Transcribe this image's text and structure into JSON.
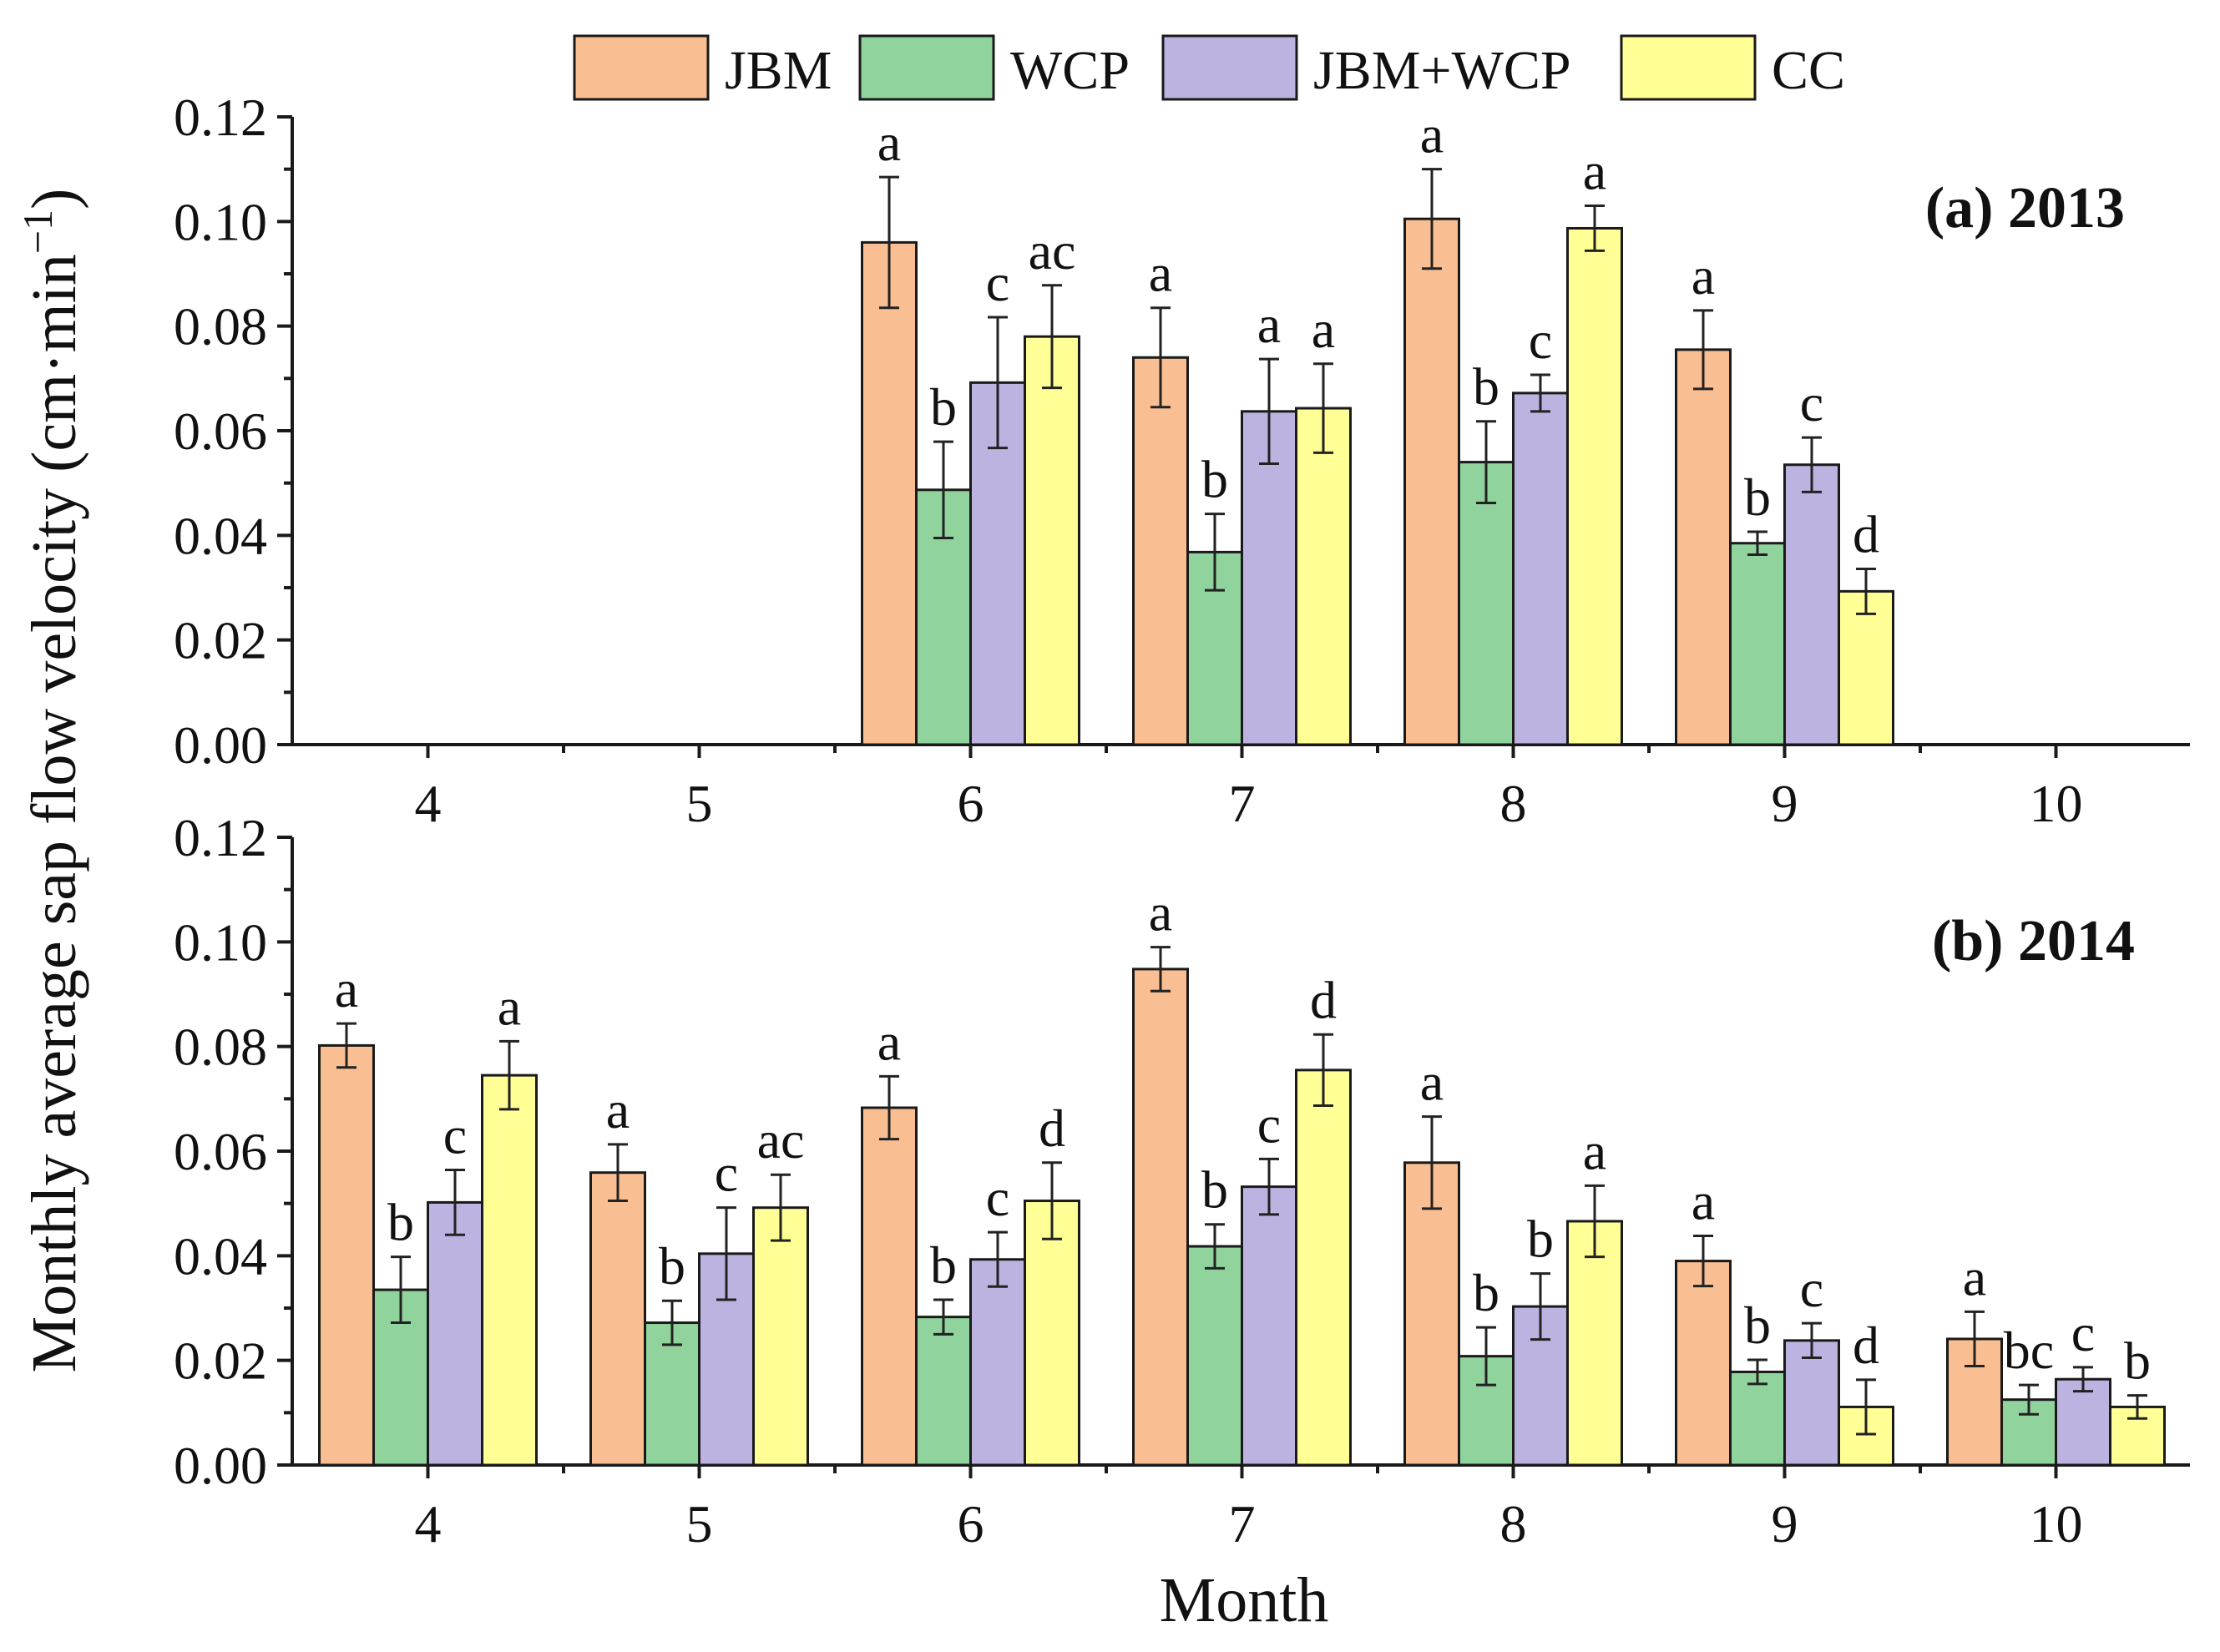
{
  "legend": [
    "JBM",
    "WCP",
    "JBM+WCP",
    "CC"
  ],
  "colors": {
    "JBM": "#f9bf92",
    "WCP": "#90d39c",
    "JBM+WCP": "#bcb3e0",
    "CC": "#ffff96"
  },
  "axes": {
    "ylabel": "Monthly average sap flow velocity (cm·min",
    "ylabel_sup": "−1",
    "ylabel_close": ")",
    "xlabel": "Month"
  },
  "chart_data": [
    {
      "type": "bar",
      "title": "(a) 2013",
      "categories": [
        "4",
        "5",
        "6",
        "7",
        "8",
        "9",
        "10"
      ],
      "ylim": [
        0,
        0.12
      ],
      "yticks": [
        "0.00",
        "0.02",
        "0.04",
        "0.06",
        "0.08",
        "0.10",
        "0.12"
      ],
      "series": [
        {
          "name": "JBM",
          "values": [
            null,
            null,
            0.096,
            0.074,
            0.1005,
            0.0755,
            null
          ],
          "errors": [
            null,
            null,
            0.0125,
            0.0095,
            0.0095,
            0.0075,
            null
          ],
          "letters": [
            "",
            "",
            "a",
            "a",
            "a",
            "a",
            ""
          ]
        },
        {
          "name": "WCP",
          "values": [
            null,
            null,
            0.0487,
            0.0368,
            0.054,
            0.0385,
            null
          ],
          "errors": [
            null,
            null,
            0.0092,
            0.0073,
            0.0078,
            0.0022,
            null
          ],
          "letters": [
            "",
            "",
            "b",
            "b",
            "b",
            "b",
            ""
          ]
        },
        {
          "name": "JBM+WCP",
          "values": [
            null,
            null,
            0.0692,
            0.0637,
            0.0672,
            0.0535,
            null
          ],
          "errors": [
            null,
            null,
            0.0125,
            0.01,
            0.0035,
            0.0052,
            null
          ],
          "letters": [
            "",
            "",
            "c",
            "a",
            "c",
            "c",
            ""
          ]
        },
        {
          "name": "CC",
          "values": [
            null,
            null,
            0.078,
            0.0643,
            0.0987,
            0.0293,
            null
          ],
          "errors": [
            null,
            null,
            0.0098,
            0.0085,
            0.0043,
            0.0043,
            null
          ],
          "letters": [
            "",
            "",
            "ac",
            "a",
            "a",
            "d",
            ""
          ]
        }
      ]
    },
    {
      "type": "bar",
      "title": "(b) 2014",
      "categories": [
        "4",
        "5",
        "6",
        "7",
        "8",
        "9",
        "10"
      ],
      "ylim": [
        0,
        0.12
      ],
      "yticks": [
        "0.00",
        "0.02",
        "0.04",
        "0.06",
        "0.08",
        "0.10",
        "0.12"
      ],
      "series": [
        {
          "name": "JBM",
          "values": [
            0.0802,
            0.0559,
            0.0683,
            0.0948,
            0.0578,
            0.039,
            0.0241
          ],
          "errors": [
            0.0042,
            0.0054,
            0.006,
            0.0042,
            0.0088,
            0.0048,
            0.0052
          ],
          "letters": [
            "a",
            "a",
            "a",
            "a",
            "a",
            "a",
            "a"
          ]
        },
        {
          "name": "WCP",
          "values": [
            0.0335,
            0.0272,
            0.0283,
            0.0418,
            0.0208,
            0.0178,
            0.0125
          ],
          "errors": [
            0.0063,
            0.0042,
            0.0033,
            0.0042,
            0.0055,
            0.0023,
            0.0028
          ],
          "letters": [
            "b",
            "b",
            "b",
            "b",
            "b",
            "b",
            "bc"
          ]
        },
        {
          "name": "JBM+WCP",
          "values": [
            0.0502,
            0.0404,
            0.0393,
            0.0532,
            0.0303,
            0.0238,
            0.0164
          ],
          "errors": [
            0.0062,
            0.0088,
            0.0052,
            0.0053,
            0.0063,
            0.0033,
            0.0023
          ],
          "letters": [
            "c",
            "c",
            "c",
            "c",
            "b",
            "c",
            "c"
          ]
        },
        {
          "name": "CC",
          "values": [
            0.0745,
            0.0492,
            0.0505,
            0.0755,
            0.0466,
            0.0111,
            0.0111
          ],
          "errors": [
            0.0065,
            0.0063,
            0.0073,
            0.0068,
            0.0068,
            0.0052,
            0.0022
          ],
          "letters": [
            "a",
            "ac",
            "d",
            "d",
            "a",
            "d",
            "b"
          ]
        }
      ]
    }
  ]
}
